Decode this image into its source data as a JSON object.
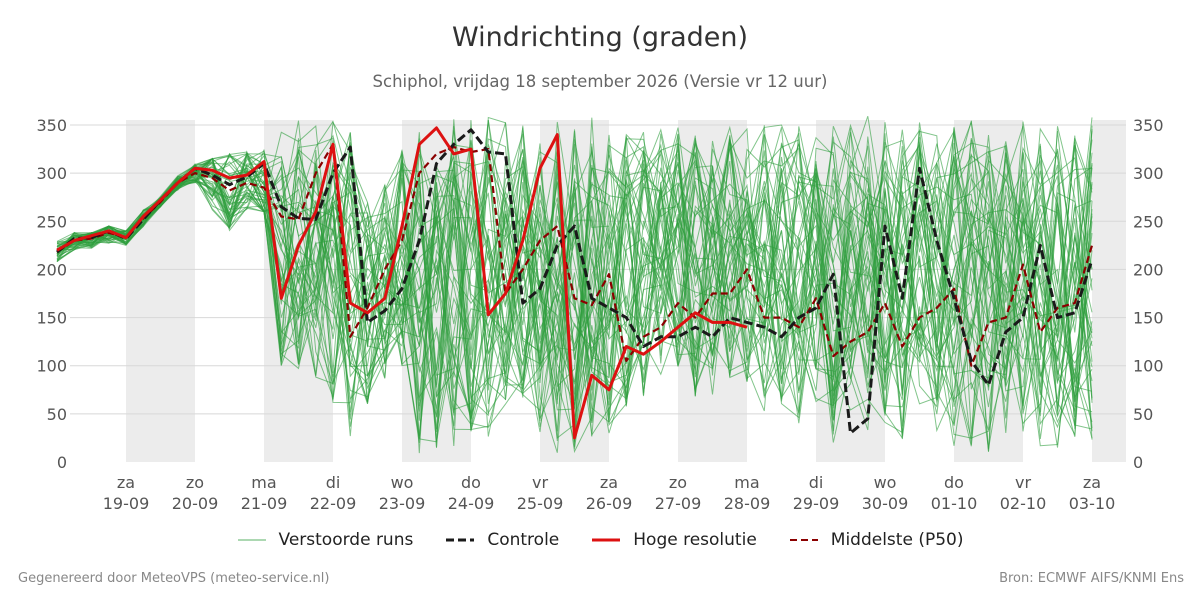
{
  "header": {
    "title": "Windrichting (graden)",
    "subtitle": "Schiphol, vrijdag 18 september 2026 (Versie vr 12 uur)"
  },
  "footer": {
    "left": "Gegenereerd door MeteoVPS (meteo-service.nl)",
    "right": "Bron: ECMWF AIFS/KNMI Ens"
  },
  "legend": [
    {
      "key": "ensemble",
      "label": "Verstoorde runs"
    },
    {
      "key": "control",
      "label": "Controle"
    },
    {
      "key": "hires",
      "label": "Hoge resolutie"
    },
    {
      "key": "median",
      "label": "Middelste (P50)"
    }
  ],
  "colors": {
    "ensemble": "#2e9e3e",
    "control": "#1a1a1a",
    "hires": "#dd1111",
    "median": "#8b0000",
    "weekend_shade": "#ececec",
    "grid": "#d8d8d8"
  },
  "chart_data": {
    "type": "line",
    "title": "Windrichting (graden)",
    "ylim": [
      0,
      360
    ],
    "yticks": [
      0,
      50,
      100,
      150,
      200,
      250,
      300,
      350
    ],
    "y_axis_both_sides": true,
    "grid": true,
    "legend_position": "bottom",
    "x_start_day": 18.0,
    "x_end_day": 33.5,
    "x_step_days": 0.25,
    "x_ticks": [
      {
        "day": 19,
        "weekday": "za",
        "date": "19-09"
      },
      {
        "day": 20,
        "weekday": "zo",
        "date": "20-09"
      },
      {
        "day": 21,
        "weekday": "ma",
        "date": "21-09"
      },
      {
        "day": 22,
        "weekday": "di",
        "date": "22-09"
      },
      {
        "day": 23,
        "weekday": "wo",
        "date": "23-09"
      },
      {
        "day": 24,
        "weekday": "do",
        "date": "24-09"
      },
      {
        "day": 25,
        "weekday": "vr",
        "date": "25-09"
      },
      {
        "day": 26,
        "weekday": "za",
        "date": "26-09"
      },
      {
        "day": 27,
        "weekday": "zo",
        "date": "27-09"
      },
      {
        "day": 28,
        "weekday": "ma",
        "date": "28-09"
      },
      {
        "day": 29,
        "weekday": "di",
        "date": "29-09"
      },
      {
        "day": 30,
        "weekday": "wo",
        "date": "30-09"
      },
      {
        "day": 31,
        "weekday": "do",
        "date": "01-10"
      },
      {
        "day": 32,
        "weekday": "vr",
        "date": "02-10"
      },
      {
        "day": 33,
        "weekday": "za",
        "date": "03-10"
      }
    ],
    "shaded_bands_days": [
      [
        19,
        20
      ],
      [
        21,
        22
      ],
      [
        23,
        24
      ],
      [
        25,
        26
      ],
      [
        27,
        28
      ],
      [
        29,
        30
      ],
      [
        31,
        32
      ],
      [
        33,
        33.5
      ]
    ],
    "series": [
      {
        "name": "Controle",
        "style": "dashed",
        "values": [
          218,
          232,
          233,
          240,
          232,
          252,
          272,
          290,
          305,
          298,
          288,
          296,
          310,
          265,
          253,
          252,
          300,
          327,
          145,
          157,
          180,
          230,
          310,
          330,
          345,
          322,
          320,
          165,
          180,
          225,
          245,
          170,
          160,
          150,
          120,
          130,
          130,
          140,
          130,
          150,
          145,
          140,
          130,
          150,
          160,
          195,
          30,
          45,
          245,
          170,
          305,
          230,
          170,
          105,
          80,
          135,
          150,
          225,
          150,
          155,
          210
        ]
      },
      {
        "name": "Hoge resolutie",
        "style": "solid",
        "values": [
          220,
          230,
          235,
          240,
          233,
          255,
          272,
          290,
          305,
          303,
          295,
          298,
          312,
          170,
          225,
          260,
          330,
          165,
          155,
          170,
          245,
          330,
          347,
          320,
          325,
          153,
          175,
          230,
          305,
          340,
          25,
          90,
          75,
          120,
          112,
          125,
          140,
          155,
          145,
          145,
          140
        ]
      },
      {
        "name": "Middelste (P50)",
        "style": "dashed",
        "values": [
          218,
          230,
          232,
          238,
          233,
          253,
          270,
          290,
          300,
          295,
          282,
          290,
          285,
          255,
          252,
          300,
          330,
          130,
          160,
          200,
          230,
          300,
          320,
          327,
          322,
          325,
          175,
          200,
          230,
          245,
          170,
          163,
          195,
          105,
          130,
          140,
          165,
          150,
          175,
          175,
          200,
          150,
          150,
          140,
          170,
          110,
          125,
          135,
          165,
          120,
          150,
          160,
          180,
          100,
          145,
          150,
          205,
          135,
          160,
          165,
          225
        ]
      }
    ],
    "ensemble": {
      "name": "Verstoorde runs",
      "member_count": 50,
      "steps": 61,
      "note_values": "individual member values per step are not legible; envelope read from the figure",
      "min": [
        208,
        215,
        212,
        218,
        220,
        240,
        265,
        280,
        285,
        230,
        205,
        240,
        260,
        100,
        90,
        80,
        60,
        25,
        60,
        80,
        100,
        5,
        0,
        10,
        30,
        15,
        60,
        50,
        20,
        0,
        10,
        20,
        30,
        40,
        60,
        80,
        90,
        60,
        70,
        80,
        60,
        50,
        60,
        40,
        60,
        20,
        20,
        30,
        40,
        20,
        30,
        30,
        10,
        5,
        10,
        30,
        20,
        10,
        15,
        25,
        20
      ],
      "max": [
        236,
        240,
        238,
        245,
        240,
        262,
        280,
        300,
        310,
        315,
        320,
        322,
        360,
        350,
        355,
        350,
        358,
        345,
        270,
        300,
        330,
        350,
        355,
        358,
        355,
        360,
        355,
        350,
        345,
        355,
        350,
        360,
        345,
        340,
        345,
        350,
        350,
        340,
        345,
        350,
        350,
        355,
        350,
        355,
        345,
        350,
        350,
        360,
        355,
        350,
        355,
        345,
        350,
        355,
        350,
        345,
        355,
        350,
        350,
        355,
        358
      ]
    }
  }
}
